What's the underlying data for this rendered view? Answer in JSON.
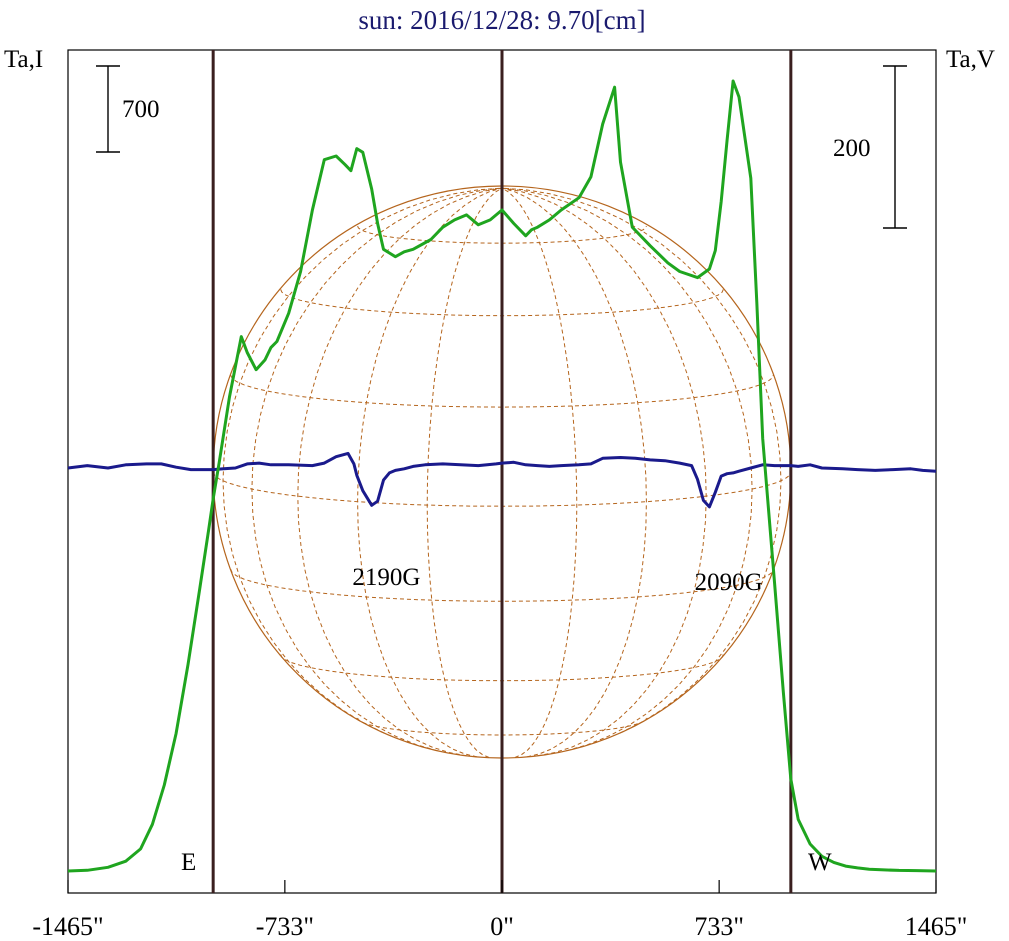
{
  "chart_data": {
    "type": "line",
    "title": "sun: 2016/12/28: 9.70[cm]",
    "left_axis_label": "Ta,I",
    "right_axis_label": "Ta,V",
    "scale_bar_left": "700",
    "scale_bar_right": "200",
    "x_ticks": [
      "-1465\"",
      "-733\"",
      "0\"",
      "733\"",
      "1465\""
    ],
    "xlim": [
      -1465,
      1465
    ],
    "marker_E": "E",
    "marker_W": "W",
    "limb_lines_arcsec": [
      -975,
      0,
      975
    ],
    "solar_radius_arcsec": 975,
    "grid": false,
    "colors": {
      "I": "#1fa51f",
      "V": "#1a1a8c",
      "limb": "#3a1f1f",
      "disk": "#b5651d",
      "title": "#1a1a6e"
    },
    "series": [
      {
        "label": "I",
        "x": [
          -1465,
          -1400,
          -1330,
          -1270,
          -1220,
          -1180,
          -1140,
          -1100,
          -1060,
          -1020,
          -990,
          -975,
          -955,
          -920,
          -880,
          -860,
          -830,
          -800,
          -780,
          -760,
          -720,
          -680,
          -640,
          -600,
          -560,
          -530,
          -510,
          -490,
          -470,
          -440,
          -420,
          -400,
          -380,
          -360,
          -330,
          -300,
          -240,
          -200,
          -160,
          -120,
          -80,
          -40,
          0,
          40,
          80,
          100,
          120,
          160,
          200,
          260,
          300,
          340,
          380,
          400,
          440,
          500,
          560,
          600,
          660,
          700,
          720,
          740,
          760,
          780,
          800,
          840,
          860,
          880,
          920,
          950,
          975,
          1000,
          1040,
          1080,
          1120,
          1160,
          1200,
          1240,
          1280,
          1340,
          1400,
          1465
        ],
        "values": [
          0,
          6,
          30,
          80,
          180,
          380,
          700,
          1120,
          1680,
          2300,
          2780,
          3030,
          3320,
          3860,
          4350,
          4220,
          4080,
          4160,
          4260,
          4310,
          4540,
          4880,
          5380,
          5790,
          5820,
          5750,
          5700,
          5880,
          5850,
          5550,
          5270,
          5060,
          5030,
          5000,
          5040,
          5060,
          5140,
          5240,
          5300,
          5340,
          5260,
          5300,
          5380,
          5270,
          5170,
          5220,
          5240,
          5300,
          5380,
          5480,
          5650,
          6080,
          6380,
          5770,
          5240,
          5090,
          4950,
          4880,
          4830,
          4900,
          5050,
          5450,
          5950,
          6430,
          6300,
          5640,
          4630,
          3520,
          2350,
          1450,
          750,
          420,
          220,
          120,
          70,
          40,
          25,
          15,
          10,
          5,
          3,
          0
        ]
      },
      {
        "label": "V",
        "x": [
          -1465,
          -1400,
          -1330,
          -1270,
          -1200,
          -1150,
          -1100,
          -1050,
          -1000,
          -975,
          -940,
          -900,
          -860,
          -820,
          -780,
          -720,
          -640,
          -600,
          -560,
          -520,
          -500,
          -490,
          -470,
          -440,
          -420,
          -400,
          -380,
          -360,
          -330,
          -300,
          -260,
          -200,
          -140,
          -80,
          -20,
          0,
          40,
          80,
          120,
          160,
          200,
          260,
          300,
          340,
          400,
          450,
          500,
          550,
          600,
          640,
          660,
          680,
          700,
          720,
          740,
          760,
          780,
          800,
          840,
          880,
          920,
          975,
          1000,
          1040,
          1080,
          1150,
          1200,
          1260,
          1320,
          1380,
          1420,
          1465
        ],
        "values": [
          0,
          3,
          0,
          4,
          5,
          5,
          1,
          -2,
          -2,
          -2,
          -1,
          0,
          5,
          6,
          4,
          4,
          3,
          6,
          14,
          18,
          5,
          -9,
          -28,
          -46,
          -41,
          -15,
          -6,
          -3,
          -1,
          2,
          4,
          5,
          4,
          3,
          5,
          6,
          7,
          4,
          3,
          2,
          3,
          4,
          5,
          12,
          13,
          12,
          10,
          9,
          6,
          3,
          -14,
          -40,
          -48,
          -30,
          -10,
          -7,
          -6,
          -4,
          0,
          4,
          3,
          3,
          2,
          4,
          0,
          -1,
          -2,
          -3,
          -2,
          -1,
          -3,
          -4
        ]
      }
    ],
    "annotations": [
      {
        "text": "2190G",
        "x": -390
      },
      {
        "text": "2090G",
        "x": 765
      }
    ]
  }
}
